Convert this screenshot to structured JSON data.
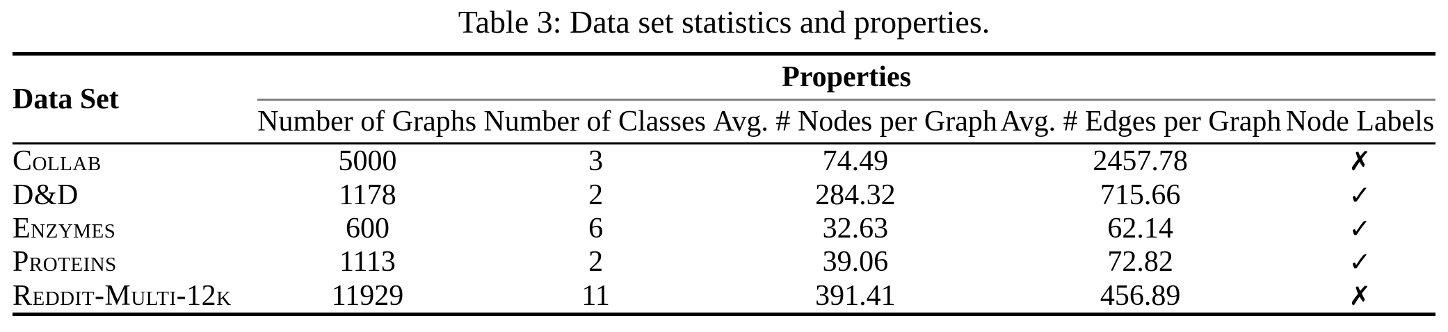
{
  "caption": "Table 3: Data set statistics and properties.",
  "table": {
    "corner_header": "Data Set",
    "group_header": "Properties",
    "columns": [
      "Number of Graphs",
      "Number of Classes",
      "Avg. # Nodes per Graph",
      "Avg. # Edges per Graph",
      "Node Labels"
    ],
    "rows": [
      {
        "name": "Collab",
        "graphs": "5000",
        "classes": "3",
        "avg_nodes": "74.49",
        "avg_edges": "2457.78",
        "node_labels": "✗"
      },
      {
        "name": "D&D",
        "graphs": "1178",
        "classes": "2",
        "avg_nodes": "284.32",
        "avg_edges": "715.66",
        "node_labels": "✓"
      },
      {
        "name": "Enzymes",
        "graphs": "600",
        "classes": "6",
        "avg_nodes": "32.63",
        "avg_edges": "62.14",
        "node_labels": "✓"
      },
      {
        "name": "Proteins",
        "graphs": "1113",
        "classes": "2",
        "avg_nodes": "39.06",
        "avg_edges": "72.82",
        "node_labels": "✓"
      },
      {
        "name": "Reddit-Multi-12k",
        "graphs": "11929",
        "classes": "11",
        "avg_nodes": "391.41",
        "avg_edges": "456.89",
        "node_labels": "✗"
      }
    ]
  },
  "colors": {
    "rule": "#000000",
    "cmidrule": "#808080",
    "text": "#000000",
    "background": "#ffffff"
  }
}
